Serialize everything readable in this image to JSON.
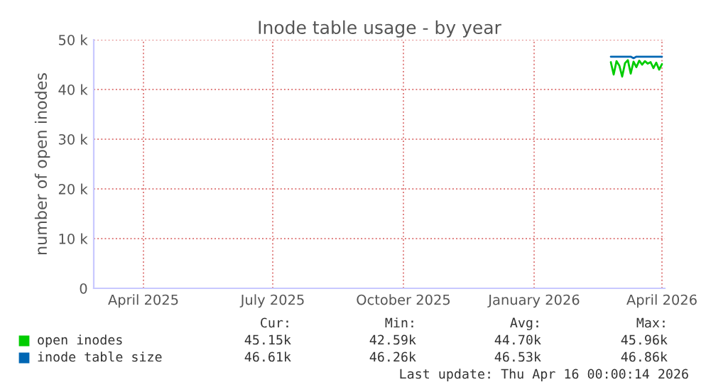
{
  "chart_data": {
    "type": "line",
    "title": "Inode table usage - by year",
    "ylabel": "number of open inodes",
    "xlim": [
      "2025-02-25",
      "2026-04-03"
    ],
    "xticks": [
      {
        "value": "2025-04-01",
        "label": "April 2025"
      },
      {
        "value": "2025-07-01",
        "label": "July 2025"
      },
      {
        "value": "2025-10-01",
        "label": "October 2025"
      },
      {
        "value": "2026-01-01",
        "label": "January 2026"
      },
      {
        "value": "2026-04-01",
        "label": "April 2026"
      }
    ],
    "ylim": [
      0,
      50000
    ],
    "yticks": [
      {
        "value": 0,
        "label": "0"
      },
      {
        "value": 10000,
        "label": "10 k"
      },
      {
        "value": 20000,
        "label": "20 k"
      },
      {
        "value": 30000,
        "label": "30 k"
      },
      {
        "value": 40000,
        "label": "40 k"
      },
      {
        "value": 50000,
        "label": "50 k"
      }
    ],
    "grid": true,
    "legend": "bottom",
    "series": [
      {
        "name": "open inodes",
        "color": "#00cc00",
        "x": [
          "2026-02-24",
          "2026-02-26",
          "2026-02-28",
          "2026-03-02",
          "2026-03-04",
          "2026-03-06",
          "2026-03-08",
          "2026-03-10",
          "2026-03-12",
          "2026-03-14",
          "2026-03-16",
          "2026-03-18",
          "2026-03-20",
          "2026-03-22",
          "2026-03-24",
          "2026-03-26",
          "2026-03-28",
          "2026-03-30",
          "2026-04-01"
        ],
        "values": [
          45500,
          43000,
          45700,
          44800,
          42600,
          45300,
          45900,
          43200,
          45600,
          44500,
          45800,
          45000,
          45700,
          45200,
          45500,
          44300,
          45400,
          44000,
          45100
        ]
      },
      {
        "name": "inode table size",
        "color": "#0066b3",
        "x": [
          "2026-02-24",
          "2026-03-06",
          "2026-03-10",
          "2026-03-12",
          "2026-03-14",
          "2026-03-20",
          "2026-04-01"
        ],
        "values": [
          46600,
          46600,
          46600,
          46300,
          46600,
          46600,
          46600
        ]
      }
    ],
    "annotations": [
      "Cur:",
      "Min:",
      "Avg:",
      "Max:",
      "45.15k",
      "42.59k",
      "44.70k",
      "45.96k",
      "46.61k",
      "46.26k",
      "46.53k",
      "46.86k",
      "Last update: Thu Apr 16 00:00:14 2026"
    ]
  }
}
